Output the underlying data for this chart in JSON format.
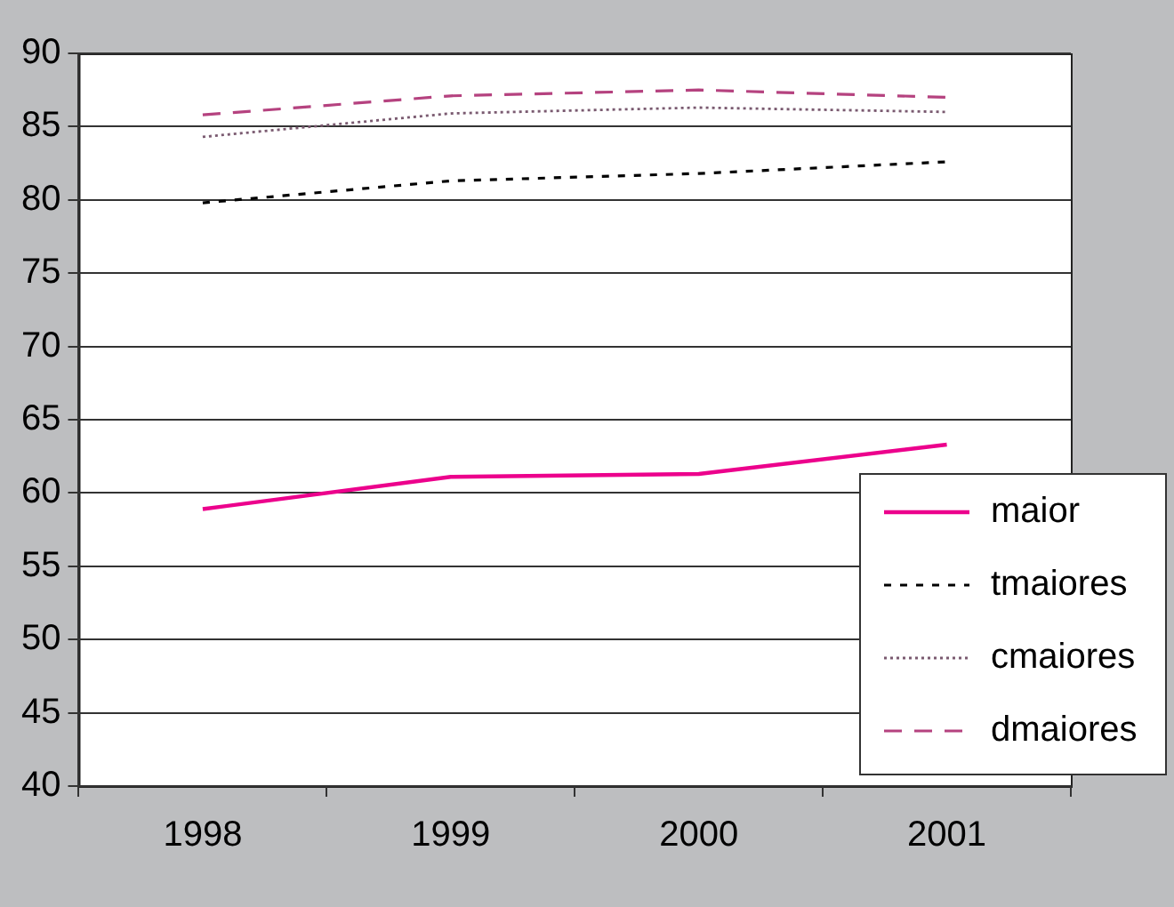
{
  "chart_data": {
    "type": "line",
    "categories": [
      "1998",
      "1999",
      "2000",
      "2001"
    ],
    "ylim": [
      40,
      90
    ],
    "yticks": [
      40,
      45,
      50,
      55,
      60,
      65,
      70,
      75,
      80,
      85,
      90
    ],
    "grid": "y",
    "legend": "bottom right",
    "marker": "none",
    "series": [
      {
        "name": "maior",
        "color": "#ec008c",
        "line_style": "solid",
        "values": [
          58.9,
          61.1,
          61.3,
          63.3
        ]
      },
      {
        "name": "tmaiores",
        "color": "#000000",
        "line_style": "dashed",
        "values": [
          79.8,
          81.3,
          81.8,
          82.6
        ]
      },
      {
        "name": "cmaiores",
        "color": "#7a5a70",
        "line_style": "dotted",
        "values": [
          84.3,
          85.9,
          86.3,
          86.0
        ]
      },
      {
        "name": "dmaiores",
        "color": "#b5427f",
        "line_style": "dashed",
        "values": [
          85.8,
          87.1,
          87.5,
          87.0
        ]
      }
    ]
  }
}
